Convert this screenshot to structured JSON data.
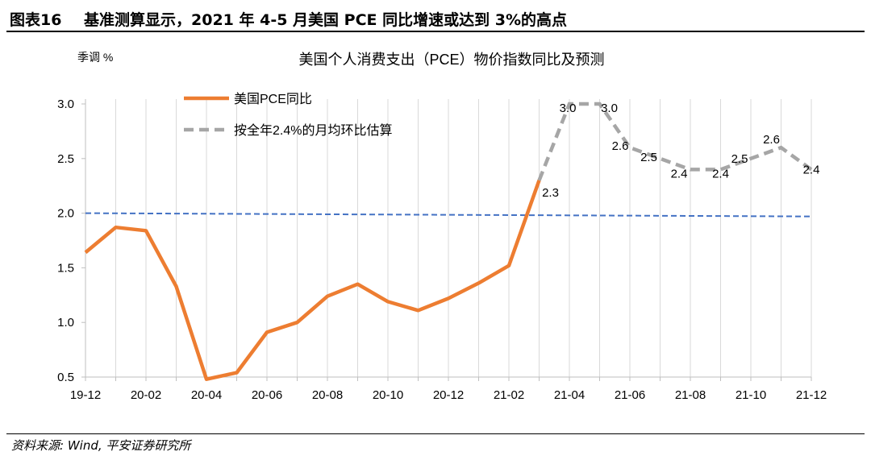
{
  "header": {
    "label": "图表16",
    "title": "基准测算显示，2021 年 4-5 月美国 PCE 同比增速或达到 3%的高点"
  },
  "footer": {
    "source": "资料来源: Wind, 平安证券研究所"
  },
  "chart_data": {
    "type": "line",
    "title": "美国个人消费支出（PCE）物价指数同比及预测",
    "ylabel": "季调 %",
    "ylim": [
      0.5,
      3.0
    ],
    "yticks": [
      "0.5",
      "1.0",
      "1.5",
      "2.0",
      "2.5",
      "3.0"
    ],
    "x": [
      "19-12",
      "20-01",
      "20-02",
      "20-03",
      "20-04",
      "20-05",
      "20-06",
      "20-07",
      "20-08",
      "20-09",
      "20-10",
      "20-11",
      "20-12",
      "21-01",
      "21-02",
      "21-03",
      "21-04",
      "21-05",
      "21-06",
      "21-07",
      "21-08",
      "21-09",
      "21-10",
      "21-11",
      "21-12"
    ],
    "xtick_labels": [
      "19-12",
      "20-02",
      "20-04",
      "20-06",
      "20-08",
      "20-10",
      "20-12",
      "21-02",
      "21-04",
      "21-06",
      "21-08",
      "21-10",
      "21-12"
    ],
    "grid": "vertical",
    "legend_position": "top-left",
    "colors": {
      "actual": "#ED7D31",
      "forecast": "#A6A6A6",
      "reference": "#4472C4"
    },
    "series": [
      {
        "name": "美国PCE同比",
        "style": "solid",
        "values": [
          1.64,
          1.87,
          1.84,
          1.33,
          0.48,
          0.54,
          0.91,
          1.0,
          1.24,
          1.35,
          1.19,
          1.11,
          1.22,
          1.36,
          1.52,
          2.3,
          null,
          null,
          null,
          null,
          null,
          null,
          null,
          null,
          null
        ]
      },
      {
        "name": "按全年2.4%的月均环比估算",
        "style": "dashed",
        "values": [
          null,
          null,
          null,
          null,
          null,
          null,
          null,
          null,
          null,
          null,
          null,
          null,
          null,
          null,
          null,
          2.3,
          3.0,
          3.0,
          2.6,
          2.5,
          2.4,
          2.4,
          2.5,
          2.6,
          2.4
        ],
        "data_labels": [
          null,
          null,
          null,
          null,
          null,
          null,
          null,
          null,
          null,
          null,
          null,
          null,
          null,
          null,
          null,
          "2.3",
          "3.0",
          "3.0",
          "2.6",
          "2.5",
          "2.4",
          "2.4",
          "2.5",
          "2.6",
          "2.4"
        ]
      },
      {
        "style": "dashed-reference",
        "start": 2.0,
        "end": 1.97
      }
    ]
  }
}
